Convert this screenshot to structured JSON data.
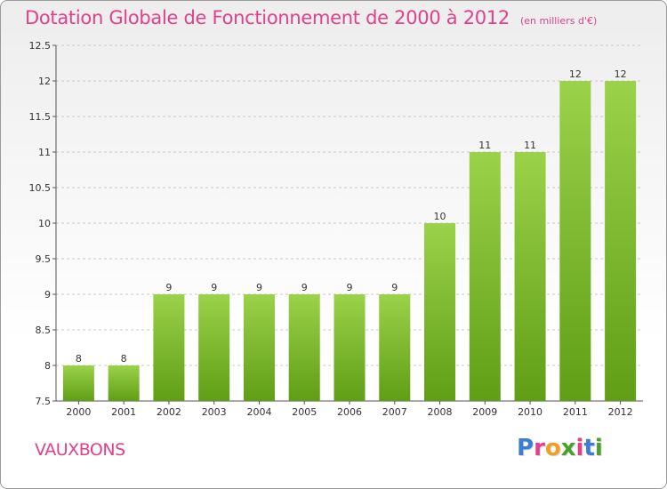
{
  "title": "Dotation Globale de Fonctionnement de 2000 à 2012",
  "unit_note": "(en milliers d'€)",
  "commune": "VAUXBONS",
  "logo": {
    "letters": [
      "P",
      "r",
      "o",
      "x",
      "i",
      "t",
      "i"
    ],
    "colors": [
      "#3a7fd0",
      "#e0418a",
      "#f0a020",
      "#4aa02a",
      "#e0418a",
      "#3a7fd0",
      "#4aa02a"
    ]
  },
  "colors": {
    "bar_top": "#9bd24a",
    "bar_bottom": "#5f9e16",
    "grid": "#c8c8c8",
    "axis": "#555555",
    "text": "#333333"
  },
  "chart_data": {
    "type": "bar",
    "title": "Dotation Globale de Fonctionnement de 2000 à 2012",
    "xlabel": "",
    "ylabel": "",
    "categories": [
      "2000",
      "2001",
      "2002",
      "2003",
      "2004",
      "2005",
      "2006",
      "2007",
      "2008",
      "2009",
      "2010",
      "2011",
      "2012"
    ],
    "values": [
      8,
      8,
      9,
      9,
      9,
      9,
      9,
      9,
      10,
      11,
      11,
      12,
      12
    ],
    "value_labels": [
      "8",
      "8",
      "9",
      "9",
      "9",
      "9",
      "9",
      "9",
      "10",
      "11",
      "11",
      "12",
      "12"
    ],
    "yticks": [
      "7.5",
      "8",
      "8.5",
      "9",
      "9.5",
      "10",
      "10.5",
      "11",
      "11.5",
      "12",
      "12.5"
    ],
    "ylim": [
      7.5,
      12.5
    ],
    "grid": true
  }
}
